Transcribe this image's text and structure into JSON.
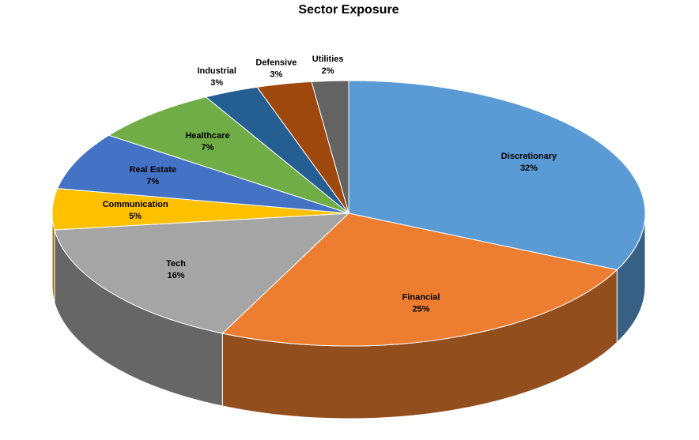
{
  "chart_data": {
    "type": "pie3d",
    "title": "Sector Exposure",
    "categories": [
      "Discretionary",
      "Financial",
      "Tech",
      "Communication",
      "Real Estate",
      "Healthcare",
      "Industrial",
      "Defensive",
      "Utilities"
    ],
    "values": [
      32,
      25,
      16,
      5,
      7,
      7,
      3,
      3,
      2
    ],
    "value_labels": [
      "32%",
      "25%",
      "16%",
      "5%",
      "7%",
      "7%",
      "3%",
      "3%",
      "2%"
    ],
    "colors": [
      "#5b9bd5",
      "#ed7d31",
      "#a5a5a5",
      "#ffc000",
      "#4472c4",
      "#70ad47",
      "#255e91",
      "#9e480e",
      "#636363"
    ]
  }
}
